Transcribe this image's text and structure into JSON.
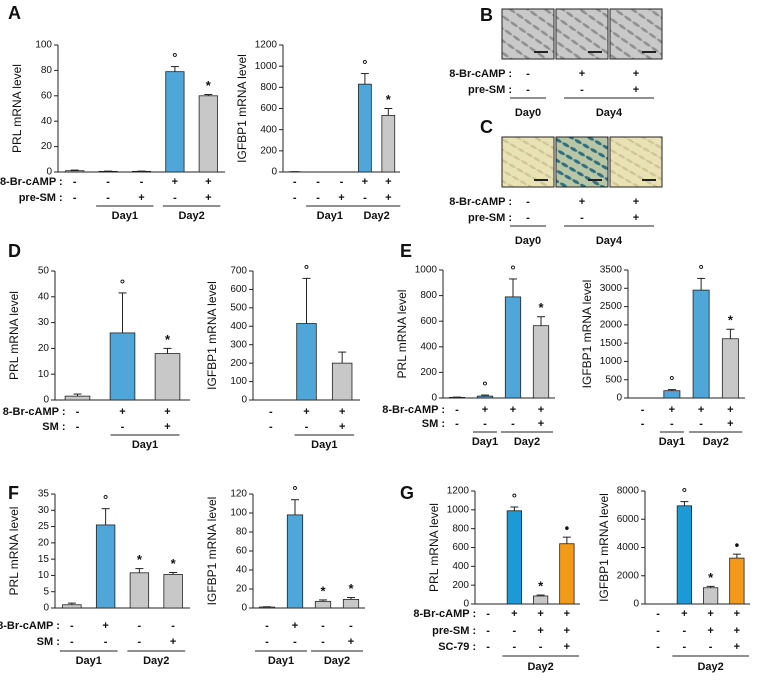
{
  "panel_labels": [
    "A",
    "B",
    "C",
    "D",
    "E",
    "F",
    "G"
  ],
  "image_panels": [
    {
      "conditions": [
        {
          "name": "8-Br-cAMP :",
          "signs": [
            "-",
            "+",
            "+"
          ]
        },
        {
          "name": "pre-SM :",
          "signs": [
            "-",
            "-",
            "+"
          ]
        }
      ],
      "groups": [
        "Day0",
        "Day4"
      ]
    },
    {
      "conditions": [
        {
          "name": "8-Br-cAMP :",
          "signs": [
            "-",
            "+",
            "+"
          ]
        },
        {
          "name": "pre-SM :",
          "signs": [
            "-",
            "-",
            "+"
          ]
        }
      ],
      "groups": [
        "Day0",
        "Day4"
      ]
    }
  ],
  "chart_data": [
    {
      "type": "bar",
      "ylabel": "PRL mRNA level",
      "ylim": [
        0,
        100
      ],
      "yticks": [
        0,
        20,
        40,
        60,
        80,
        100
      ],
      "values": [
        1,
        0.5,
        0.5,
        79,
        60
      ],
      "errors": [
        0.5,
        0.2,
        0.2,
        4,
        1
      ],
      "markers": [
        null,
        null,
        null,
        "°",
        "*"
      ],
      "colors": [
        "#c8c8c8",
        "#c8c8c8",
        "#c8c8c8",
        "#4fa6d9",
        "#c8c8c8"
      ],
      "conditions": [
        {
          "name": "8-Br-cAMP :",
          "signs": [
            "-",
            "-",
            "-",
            "+",
            "+"
          ]
        },
        {
          "name": "pre-SM :",
          "signs": [
            "-",
            "-",
            "+",
            "-",
            "+"
          ]
        }
      ],
      "groups": [
        "Day1",
        "Day2"
      ]
    },
    {
      "type": "bar",
      "ylabel": "IGFBP1 mRNA level",
      "ylim": [
        0,
        1200
      ],
      "yticks": [
        0,
        200,
        400,
        600,
        800,
        1000,
        1200
      ],
      "values": [
        2,
        0,
        0,
        830,
        535
      ],
      "errors": [
        1,
        0,
        0,
        100,
        65
      ],
      "markers": [
        null,
        null,
        null,
        "°",
        "*"
      ],
      "colors": [
        "#c8c8c8",
        "#c8c8c8",
        "#c8c8c8",
        "#4fa6d9",
        "#c8c8c8"
      ],
      "conditions": [
        {
          "signs": [
            "-",
            "-",
            "-",
            "+",
            "+"
          ]
        },
        {
          "signs": [
            "-",
            "-",
            "+",
            "-",
            "+"
          ]
        }
      ],
      "groups": [
        "Day1",
        "Day2"
      ]
    },
    {
      "type": "bar",
      "ylabel": "PRL mRNA level",
      "ylim": [
        0,
        50
      ],
      "yticks": [
        0,
        10,
        20,
        30,
        40,
        50
      ],
      "values": [
        1.5,
        26,
        18
      ],
      "errors": [
        0.8,
        15.5,
        2
      ],
      "markers": [
        null,
        "°",
        "*"
      ],
      "colors": [
        "#c8c8c8",
        "#4fa6d9",
        "#c8c8c8"
      ],
      "conditions": [
        {
          "name": "8-Br-cAMP :",
          "signs": [
            "-",
            "+",
            "+"
          ]
        },
        {
          "name": "SM :",
          "signs": [
            "-",
            "-",
            "+"
          ]
        }
      ],
      "groups": [
        "Day1"
      ]
    },
    {
      "type": "bar",
      "ylabel": "IGFBP1 mRNA level",
      "ylim": [
        0,
        700
      ],
      "yticks": [
        0,
        100,
        200,
        300,
        400,
        500,
        600,
        700
      ],
      "values": [
        0,
        415,
        200
      ],
      "errors": [
        0,
        245,
        60
      ],
      "markers": [
        null,
        "°",
        null
      ],
      "colors": [
        "#c8c8c8",
        "#4fa6d9",
        "#c8c8c8"
      ],
      "conditions": [
        {
          "signs": [
            "-",
            "+",
            "+"
          ]
        },
        {
          "signs": [
            "-",
            "-",
            "+"
          ]
        }
      ],
      "groups": [
        "Day1"
      ]
    },
    {
      "type": "bar",
      "ylabel": "PRL mRNA level",
      "ylim": [
        0,
        1000
      ],
      "yticks": [
        0,
        200,
        400,
        600,
        800,
        1000
      ],
      "values": [
        5,
        15,
        790,
        565
      ],
      "errors": [
        2,
        8,
        140,
        70
      ],
      "markers": [
        null,
        "°",
        "°",
        "*"
      ],
      "colors": [
        "#c8c8c8",
        "#4fa6d9",
        "#4fa6d9",
        "#c8c8c8"
      ],
      "conditions": [
        {
          "name": "8-Br-cAMP :",
          "signs": [
            "-",
            "+",
            "+",
            "+"
          ]
        },
        {
          "name": "SM :",
          "signs": [
            "-",
            "-",
            "-",
            "+"
          ]
        }
      ],
      "groups": [
        "Day1",
        "Day2"
      ]
    },
    {
      "type": "bar",
      "ylabel": "IGFBP1 mRNA level",
      "ylim": [
        0,
        3500
      ],
      "yticks": [
        0,
        500,
        1000,
        1500,
        2000,
        2500,
        3000,
        3500
      ],
      "values": [
        0,
        200,
        2950,
        1620
      ],
      "errors": [
        0,
        30,
        320,
        260
      ],
      "markers": [
        null,
        "°",
        "°",
        "*"
      ],
      "colors": [
        "#c8c8c8",
        "#4fa6d9",
        "#4fa6d9",
        "#c8c8c8"
      ],
      "conditions": [
        {
          "signs": [
            "-",
            "+",
            "+",
            "+"
          ]
        },
        {
          "signs": [
            "-",
            "-",
            "-",
            "+"
          ]
        }
      ],
      "groups": [
        "Day1",
        "Day2"
      ]
    },
    {
      "type": "bar",
      "ylabel": "PRL mRNA level",
      "ylim": [
        0,
        35
      ],
      "yticks": [
        0,
        5,
        10,
        15,
        20,
        25,
        30,
        35
      ],
      "values": [
        1,
        25.5,
        10.8,
        10.3
      ],
      "errors": [
        0.5,
        5,
        1.3,
        0.6
      ],
      "markers": [
        null,
        "°",
        "*",
        "*"
      ],
      "colors": [
        "#c8c8c8",
        "#4fa6d9",
        "#c8c8c8",
        "#c8c8c8"
      ],
      "conditions": [
        {
          "name": "8-Br-cAMP :",
          "signs": [
            "-",
            "+",
            "-",
            "-"
          ]
        },
        {
          "name": "SM :",
          "signs": [
            "-",
            "-",
            "-",
            "+"
          ]
        }
      ],
      "groups": [
        "Day1",
        "Day2"
      ]
    },
    {
      "type": "bar",
      "ylabel": "IGFBP1 mRNA level",
      "ylim": [
        0,
        120
      ],
      "yticks": [
        0,
        20,
        40,
        60,
        80,
        100,
        120
      ],
      "values": [
        1,
        98,
        7,
        9
      ],
      "errors": [
        0.3,
        16,
        1.5,
        2
      ],
      "markers": [
        null,
        "°",
        "*",
        "*"
      ],
      "colors": [
        "#c8c8c8",
        "#4fa6d9",
        "#c8c8c8",
        "#c8c8c8"
      ],
      "conditions": [
        {
          "signs": [
            "-",
            "+",
            "-",
            "-"
          ]
        },
        {
          "signs": [
            "-",
            "-",
            "-",
            "+"
          ]
        }
      ],
      "groups": [
        "Day1",
        "Day2"
      ]
    },
    {
      "type": "bar",
      "ylabel": "PRL mRNA level",
      "ylim": [
        0,
        1200
      ],
      "yticks": [
        0,
        200,
        400,
        600,
        800,
        1000,
        1200
      ],
      "values": [
        0,
        990,
        85,
        640
      ],
      "errors": [
        0,
        40,
        10,
        70
      ],
      "markers": [
        null,
        "°",
        "*",
        "•"
      ],
      "colors": [
        "#c8c8c8",
        "#1a9ad6",
        "#c8c8c8",
        "#f39a1a"
      ],
      "conditions": [
        {
          "name": "8-Br-cAMP :",
          "signs": [
            "-",
            "+",
            "+",
            "+"
          ]
        },
        {
          "name": "pre-SM :",
          "signs": [
            "-",
            "-",
            "+",
            "+"
          ]
        },
        {
          "name": "SC-79 :",
          "signs": [
            "-",
            "-",
            "-",
            "+"
          ]
        }
      ],
      "groups": [
        "Day2"
      ]
    },
    {
      "type": "bar",
      "ylabel": "IGFBP1 mRNA level",
      "ylim": [
        0,
        8000
      ],
      "yticks": [
        0,
        2000,
        4000,
        6000,
        8000
      ],
      "values": [
        0,
        6950,
        1150,
        3250
      ],
      "errors": [
        0,
        300,
        100,
        280
      ],
      "markers": [
        null,
        "°",
        "*",
        "•"
      ],
      "colors": [
        "#c8c8c8",
        "#1a9ad6",
        "#c8c8c8",
        "#f39a1a"
      ],
      "conditions": [
        {
          "signs": [
            "-",
            "+",
            "+",
            "+"
          ]
        },
        {
          "signs": [
            "-",
            "-",
            "+",
            "+"
          ]
        },
        {
          "signs": [
            "-",
            "-",
            "-",
            "+"
          ]
        }
      ],
      "groups": [
        "Day2"
      ]
    }
  ]
}
